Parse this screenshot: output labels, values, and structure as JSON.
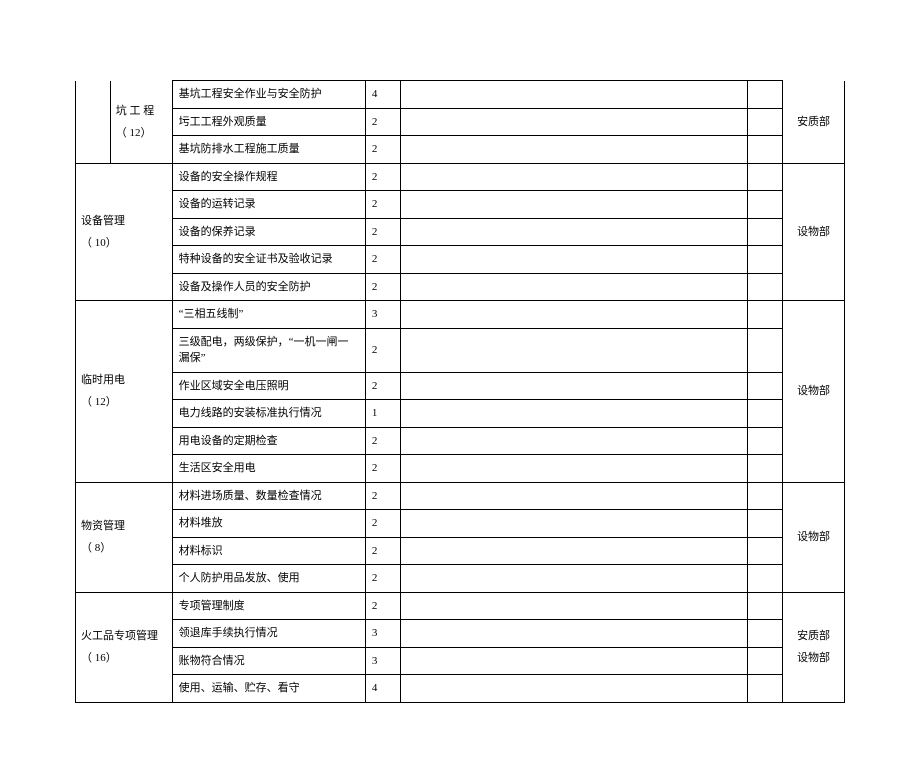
{
  "columns": {
    "widths": [
      "4.5%",
      "8%",
      "25%",
      "4.5%",
      "45%",
      "4.5%",
      "8%"
    ]
  },
  "rows": [
    {
      "spacer_rowspan": 3,
      "cat_rowspan": 3,
      "cat": "坑 工 程\n（ 12）",
      "cat_colspan": 1,
      "item": "基坑工程安全作业与安全防护",
      "score": "4",
      "dept_rowspan": 3,
      "dept": "安质部",
      "no_top": true
    },
    {
      "item": "圬工工程外观质量",
      "score": "2"
    },
    {
      "item": "基坑防排水工程施工质量",
      "score": "2"
    },
    {
      "cat_rowspan": 5,
      "cat": "设备管理\n（ 10）",
      "cat_colspan": 2,
      "item": "设备的安全操作规程",
      "score": "2",
      "dept_rowspan": 5,
      "dept": "设物部"
    },
    {
      "item": "设备的运转记录",
      "score": "2"
    },
    {
      "item": "设备的保养记录",
      "score": "2"
    },
    {
      "item": "特种设备的安全证书及验收记录",
      "score": "2"
    },
    {
      "item": "设备及操作人员的安全防护",
      "score": "2"
    },
    {
      "cat_rowspan": 6,
      "cat": "临时用电\n（ 12）",
      "cat_colspan": 2,
      "item": "“三相五线制”",
      "score": "3",
      "dept_rowspan": 6,
      "dept": "设物部"
    },
    {
      "item": "三级配电，两级保护，“一机一闸一漏保”",
      "score": "2"
    },
    {
      "item": "作业区域安全电压照明",
      "score": "2"
    },
    {
      "item": "电力线路的安装标准执行情况",
      "score": "1"
    },
    {
      "item": "用电设备的定期检查",
      "score": "2"
    },
    {
      "item": "生活区安全用电",
      "score": "2"
    },
    {
      "cat_rowspan": 4,
      "cat": "物资管理\n（ 8）",
      "cat_colspan": 2,
      "item": "材料进场质量、数量检查情况",
      "score": "2",
      "dept_rowspan": 4,
      "dept": "设物部"
    },
    {
      "item": "材料堆放",
      "score": "2"
    },
    {
      "item": "材料标识",
      "score": "2"
    },
    {
      "item": "个人防护用品发放、使用",
      "score": "2"
    },
    {
      "cat_rowspan": 4,
      "cat": "火工品专项管理（ 16）",
      "cat_colspan": 2,
      "item": "专项管理制度",
      "score": "2",
      "dept_rowspan": 4,
      "dept": "安质部\n设物部"
    },
    {
      "item": "领退库手续执行情况",
      "score": "3"
    },
    {
      "item": "账物符合情况",
      "score": "3"
    },
    {
      "item": "使用、运输、贮存、看守",
      "score": "4"
    }
  ]
}
